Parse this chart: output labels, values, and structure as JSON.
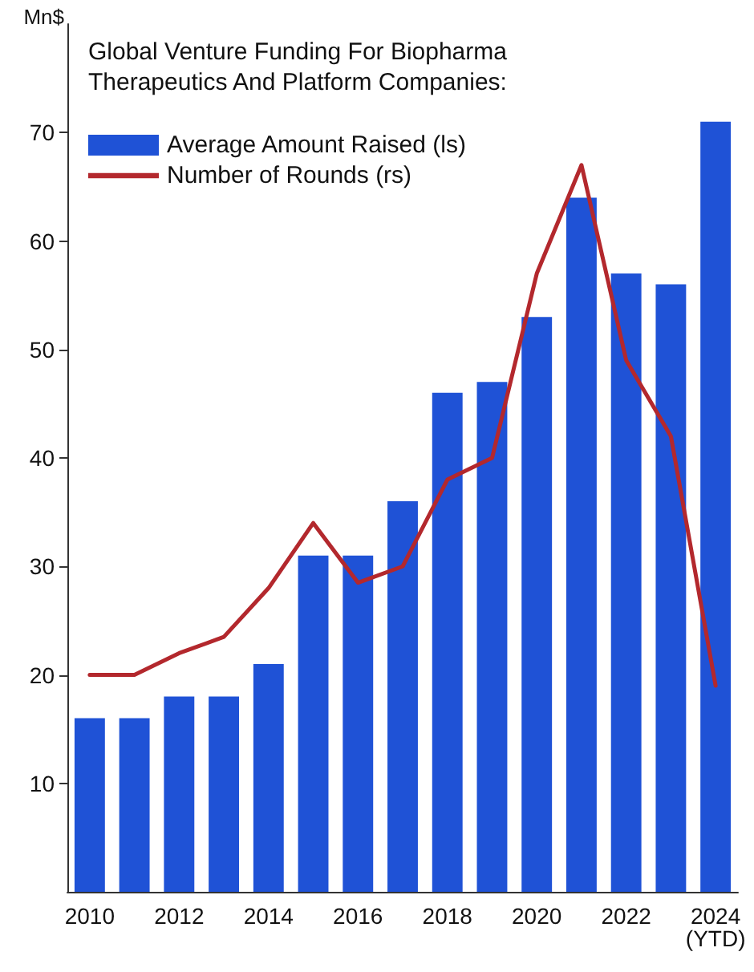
{
  "chart_data": {
    "type": "bar",
    "title": "Global Venture Funding For Biopharma\nTherapeutics And Platform Companies:",
    "ylabel": "Mn$",
    "categories": [
      "2010",
      null,
      "2012",
      null,
      "2014",
      null,
      "2016",
      null,
      "2018",
      null,
      "2020",
      null,
      "2022",
      null,
      "2024\n(YTD)"
    ],
    "series": [
      {
        "name": "Average Amount Raised (ls)",
        "color": "#1f52d6",
        "values": [
          16,
          16,
          18,
          18,
          21,
          31,
          31,
          36,
          46,
          47,
          53,
          64,
          57,
          56,
          71
        ]
      },
      {
        "name": "Number of Rounds (rs)",
        "type": "line",
        "color": "#b3282d",
        "values": [
          20,
          20,
          22,
          23.5,
          28,
          34,
          28.5,
          30,
          38,
          40,
          57,
          67,
          49,
          42,
          19
        ]
      }
    ],
    "ylim": [
      0,
      80
    ],
    "yticks": [
      10,
      20,
      30,
      40,
      50,
      60,
      70
    ],
    "grid": false,
    "legend": "top left",
    "marker": "none"
  }
}
